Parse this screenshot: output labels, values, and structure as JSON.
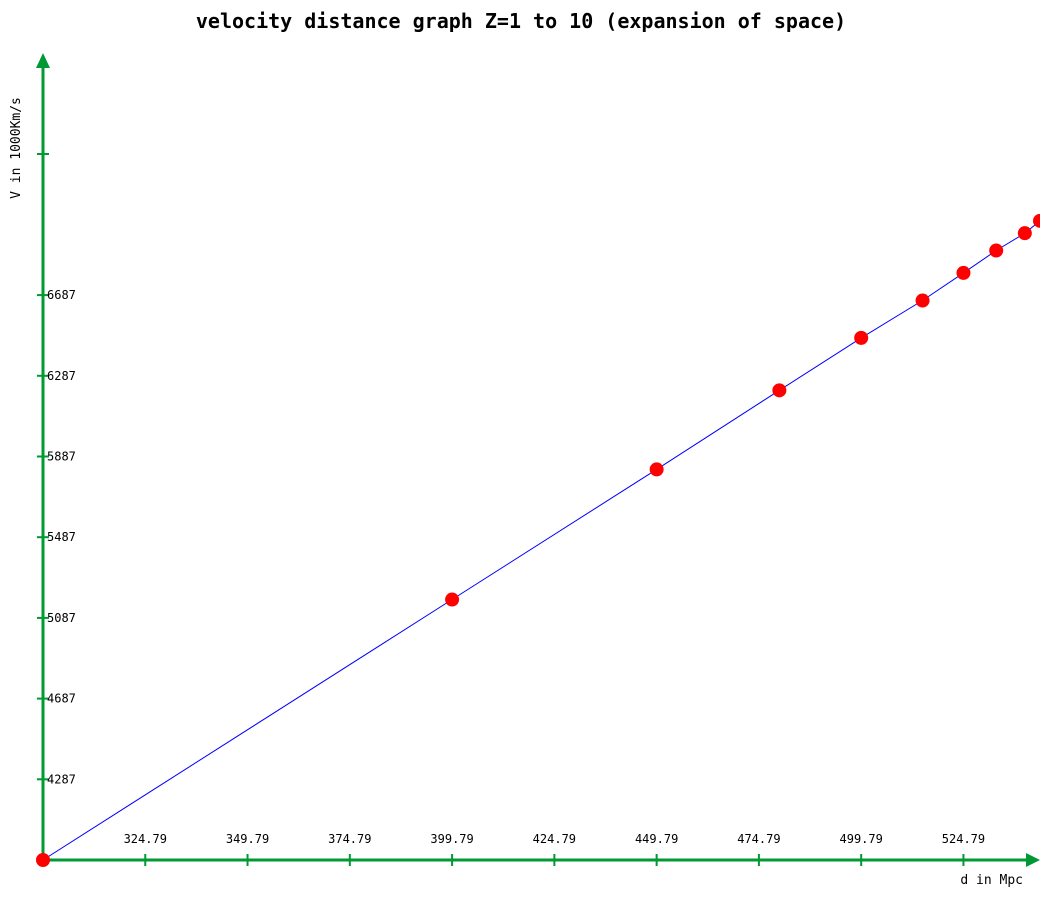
{
  "chart_data": {
    "type": "scatter",
    "title": "velocity distance graph Z=1 to 10 (expansion of space)",
    "xlabel": "d in Mpc",
    "ylabel": "V in 1000Km/s",
    "xlim": [
      299.79,
      543.5
    ],
    "ylim": [
      3887,
      7887
    ],
    "x_ticks": [
      "324.79",
      "349.79",
      "374.79",
      "399.79",
      "424.79",
      "449.79",
      "474.79",
      "499.79",
      "524.79"
    ],
    "y_ticks": [
      "4287",
      "4687",
      "5087",
      "5487",
      "5887",
      "6287",
      "6687"
    ],
    "line_color": "#0000ff",
    "marker_color": "#ff0000",
    "axis_color": "#009933",
    "points": [
      {
        "x": 299.79,
        "y": 3887
      },
      {
        "x": 399.79,
        "y": 5178
      },
      {
        "x": 449.79,
        "y": 5823
      },
      {
        "x": 479.79,
        "y": 6215
      },
      {
        "x": 499.79,
        "y": 6475
      },
      {
        "x": 514.79,
        "y": 6660
      },
      {
        "x": 524.79,
        "y": 6797
      },
      {
        "x": 532.79,
        "y": 6908
      },
      {
        "x": 539.79,
        "y": 6994
      },
      {
        "x": 543.5,
        "y": 7055
      }
    ]
  }
}
